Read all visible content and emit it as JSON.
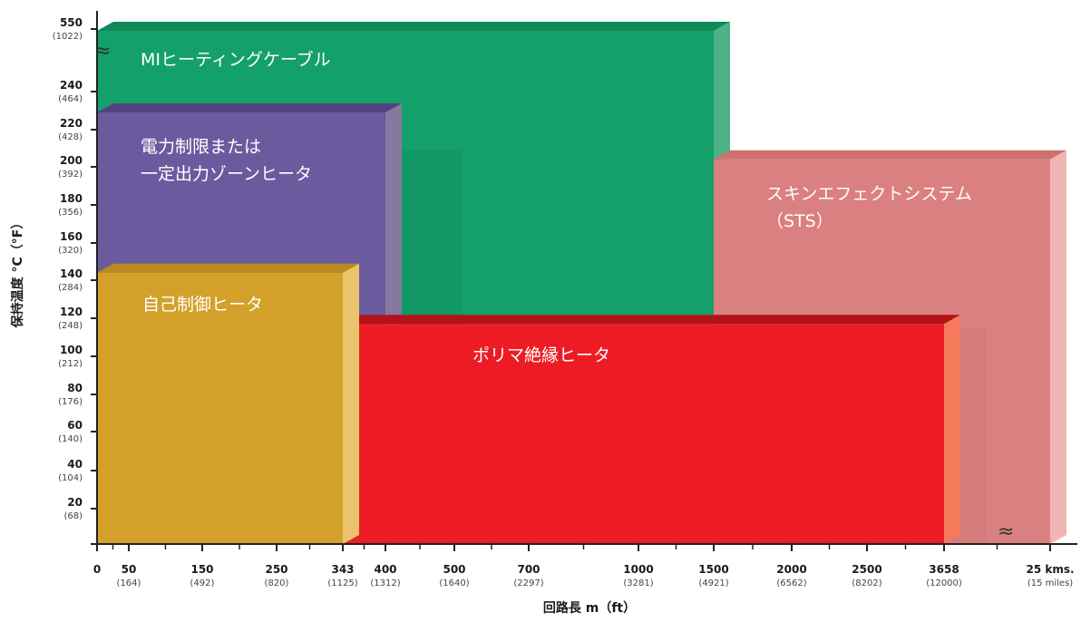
{
  "chart_data": {
    "type": "bar",
    "xlabel": "回路長 m（ft）",
    "ylabel": "保持温度 °C（°F）",
    "x_ticks": [
      {
        "main": "0",
        "sub": ""
      },
      {
        "main": "50",
        "sub": "(164)"
      },
      {
        "main": "150",
        "sub": "(492)"
      },
      {
        "main": "250",
        "sub": "(820)"
      },
      {
        "main": "343",
        "sub": "(1125)"
      },
      {
        "main": "400",
        "sub": "(1312)"
      },
      {
        "main": "500",
        "sub": "(1640)"
      },
      {
        "main": "700",
        "sub": "(2297)"
      },
      {
        "main": "1000",
        "sub": "(3281)"
      },
      {
        "main": "1500",
        "sub": "(4921)"
      },
      {
        "main": "2000",
        "sub": "(6562)"
      },
      {
        "main": "2500",
        "sub": "(8202)"
      },
      {
        "main": "3658",
        "sub": "(12000)"
      },
      {
        "main": "25 kms.",
        "sub": "(15 miles)"
      }
    ],
    "y_ticks": [
      {
        "main": "20",
        "sub": "(68)"
      },
      {
        "main": "40",
        "sub": "(104)"
      },
      {
        "main": "60",
        "sub": "(140)"
      },
      {
        "main": "80",
        "sub": "(176)"
      },
      {
        "main": "100",
        "sub": "(212)"
      },
      {
        "main": "120",
        "sub": "(248)"
      },
      {
        "main": "140",
        "sub": "(284)"
      },
      {
        "main": "160",
        "sub": "(320)"
      },
      {
        "main": "180",
        "sub": "(356)"
      },
      {
        "main": "200",
        "sub": "(392)"
      },
      {
        "main": "220",
        "sub": "(428)"
      },
      {
        "main": "240",
        "sub": "(464)"
      },
      {
        "main": "550",
        "sub": "(1022)"
      }
    ],
    "series": [
      {
        "name": "MIヒーティングケーブル",
        "label_lines": [
          "MIヒーティングケーブル"
        ],
        "max_length": "1500",
        "max_temp": 550,
        "color": "#14a06a",
        "side": "#4db287",
        "top": "#0f8a59",
        "shade": "#11915f"
      },
      {
        "name": "電力制限または一定出力ゾーンヒータ",
        "label_lines": [
          "電力制限または",
          "一定出力ゾーンヒータ"
        ],
        "max_length": "400",
        "max_temp": 230,
        "color": "#6a5b9e",
        "side": "#857a9e",
        "top": "#534480"
      },
      {
        "name": "スキンエフェクトシステム（STS）",
        "label_lines": [
          "スキンエフェクトシステム",
          "（STS）"
        ],
        "min_length": "1500",
        "max_length": "25 kms.",
        "max_temp": 205,
        "color": "#db8080",
        "side": "#f0b5b5",
        "top": "#cf7070",
        "shade": "#d27676"
      },
      {
        "name": "ポリマ絶縁ヒータ",
        "label_lines": [
          "ポリマ絶縁ヒータ"
        ],
        "max_length": "3658",
        "max_temp": 118,
        "color": "#ed1c24",
        "side": "#f57a5c",
        "top": "#b3121a"
      },
      {
        "name": "自己制御ヒータ",
        "label_lines": [
          "自己制御ヒータ"
        ],
        "max_length": "343",
        "max_temp": 145,
        "color": "#d3a02a",
        "side": "#e9c46a",
        "top": "#b88a1f"
      }
    ],
    "axis_break_symbol": "≈",
    "grid": false,
    "legend": "none"
  }
}
